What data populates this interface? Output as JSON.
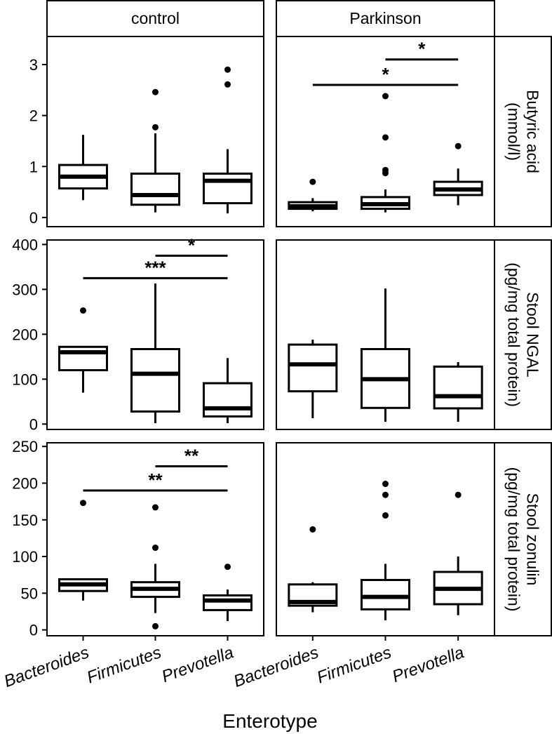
{
  "chart_data": {
    "type": "boxplot",
    "xlabel": "Enterotype",
    "categories": [
      "Bacteroides",
      "Firmicutes",
      "Prevotella"
    ],
    "columns": [
      "control",
      "Parkinson"
    ],
    "rows": [
      {
        "label": "Butyric acid\n(mmol/l)",
        "ylim": [
          -0.18,
          3.55
        ],
        "yticks": [
          0,
          1,
          2,
          3
        ],
        "panels": [
          {
            "boxes": [
              {
                "min": 0.34,
                "q1": 0.57,
                "median": 0.8,
                "q3": 1.03,
                "max": 1.62,
                "outliers": []
              },
              {
                "min": 0.1,
                "q1": 0.25,
                "median": 0.44,
                "q3": 0.86,
                "max": 1.65,
                "outliers": [
                  1.77,
                  2.46
                ]
              },
              {
                "min": 0.08,
                "q1": 0.28,
                "median": 0.72,
                "q3": 0.86,
                "max": 1.34,
                "outliers": [
                  2.61,
                  2.9
                ]
              }
            ],
            "sig": []
          },
          {
            "boxes": [
              {
                "min": 0.12,
                "q1": 0.17,
                "median": 0.22,
                "q3": 0.3,
                "max": 0.38,
                "outliers": [
                  0.7
                ]
              },
              {
                "min": 0.1,
                "q1": 0.17,
                "median": 0.26,
                "q3": 0.4,
                "max": 0.55,
                "outliers": [
                  0.87,
                  0.93,
                  1.57,
                  2.38
                ]
              },
              {
                "min": 0.24,
                "q1": 0.44,
                "median": 0.55,
                "q3": 0.7,
                "max": 0.96,
                "outliers": [
                  1.4
                ]
              }
            ],
            "sig": [
              {
                "from": 0,
                "to": 2,
                "y": 2.6,
                "label": "*"
              },
              {
                "from": 1,
                "to": 2,
                "y": 3.1,
                "label": "*"
              }
            ]
          }
        ]
      },
      {
        "label": "Stool NGAL\n(pg/mg total protein)",
        "ylim": [
          -12,
          410
        ],
        "yticks": [
          0,
          100,
          200,
          300,
          400
        ],
        "panels": [
          {
            "boxes": [
              {
                "min": 70,
                "q1": 120,
                "median": 160,
                "q3": 172,
                "max": 172,
                "outliers": [
                  253
                ]
              },
              {
                "min": 2,
                "q1": 28,
                "median": 112,
                "q3": 167,
                "max": 313,
                "outliers": []
              },
              {
                "min": 2,
                "q1": 17,
                "median": 35,
                "q3": 91,
                "max": 147,
                "outliers": []
              }
            ],
            "sig": [
              {
                "from": 0,
                "to": 2,
                "y": 325,
                "label": "***"
              },
              {
                "from": 1,
                "to": 2,
                "y": 375,
                "label": "*"
              }
            ]
          },
          {
            "boxes": [
              {
                "min": 13,
                "q1": 73,
                "median": 133,
                "q3": 177,
                "max": 188,
                "outliers": []
              },
              {
                "min": 5,
                "q1": 36,
                "median": 100,
                "q3": 167,
                "max": 302,
                "outliers": []
              },
              {
                "min": 5,
                "q1": 35,
                "median": 62,
                "q3": 128,
                "max": 138,
                "outliers": []
              }
            ]
          }
        ]
      },
      {
        "label": "Stool zonulin\n(pg/mg total protein)",
        "ylim": [
          -8,
          255
        ],
        "yticks": [
          0,
          50,
          100,
          150,
          200,
          250
        ],
        "panels": [
          {
            "boxes": [
              {
                "min": 40,
                "q1": 53,
                "median": 62,
                "q3": 69,
                "max": 70,
                "outliers": [
                  173
                ]
              },
              {
                "min": 23,
                "q1": 45,
                "median": 56,
                "q3": 65,
                "max": 90,
                "outliers": [
                  5,
                  112,
                  167
                ]
              },
              {
                "min": 12,
                "q1": 27,
                "median": 40,
                "q3": 47,
                "max": 55,
                "outliers": [
                  86
                ]
              }
            ],
            "sig": [
              {
                "from": 0,
                "to": 2,
                "y": 190,
                "label": "**"
              },
              {
                "from": 1,
                "to": 2,
                "y": 223,
                "label": "**"
              }
            ]
          },
          {
            "boxes": [
              {
                "min": 24,
                "q1": 33,
                "median": 38,
                "q3": 62,
                "max": 65,
                "outliers": [
                  137
                ]
              },
              {
                "min": 13,
                "q1": 28,
                "median": 45,
                "q3": 68,
                "max": 90,
                "outliers": [
                  156,
                  184,
                  199
                ]
              },
              {
                "min": 20,
                "q1": 35,
                "median": 56,
                "q3": 79,
                "max": 100,
                "outliers": [
                  184
                ]
              }
            ]
          }
        ]
      }
    ]
  }
}
